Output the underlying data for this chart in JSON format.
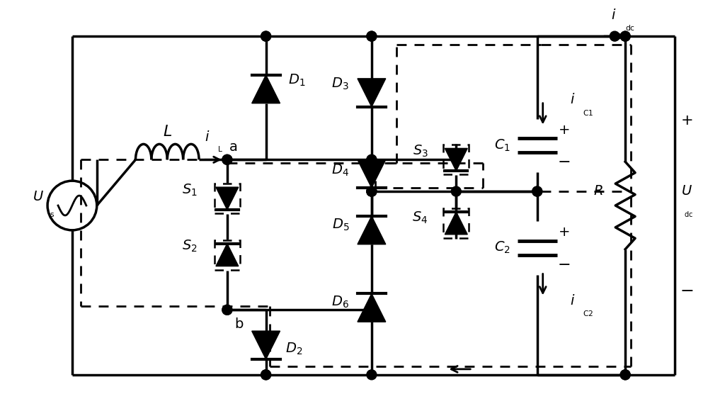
{
  "figsize": [
    10.0,
    5.8
  ],
  "dpi": 100,
  "bg_color": "#ffffff",
  "xlim": [
    0,
    10.0
  ],
  "ylim": [
    0,
    5.8
  ],
  "lw_main": 2.5,
  "lw_dash": 2.0,
  "diode_size": 0.2,
  "dot_r": 0.07
}
